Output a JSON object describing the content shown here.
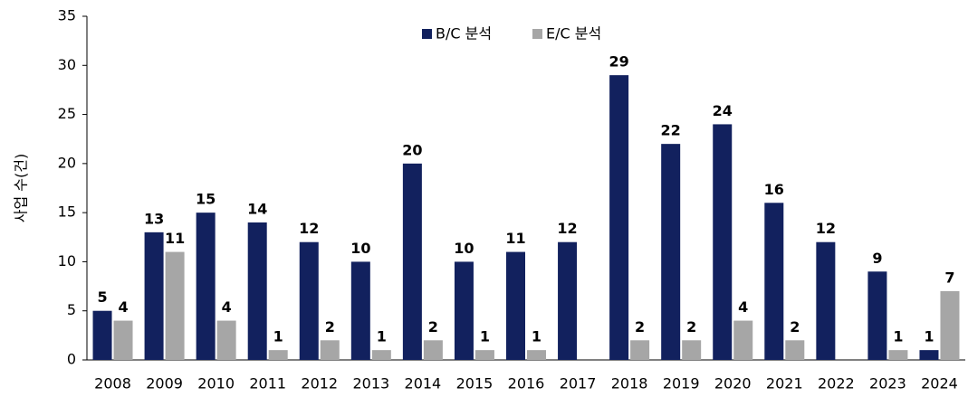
{
  "chart_data": {
    "type": "bar",
    "ylabel": "사업 수(건)",
    "categories": [
      "2008",
      "2009",
      "2010",
      "2011",
      "2012",
      "2013",
      "2014",
      "2015",
      "2016",
      "2017",
      "2018",
      "2019",
      "2020",
      "2021",
      "2022",
      "2023",
      "2024"
    ],
    "series": [
      {
        "name": "B/C 분석",
        "color": "#12215e",
        "values": [
          5,
          13,
          15,
          14,
          12,
          10,
          20,
          10,
          11,
          12,
          29,
          22,
          24,
          16,
          12,
          9,
          1
        ]
      },
      {
        "name": "E/C 분석",
        "color": "#a6a6a6",
        "values": [
          4,
          11,
          4,
          1,
          2,
          1,
          2,
          1,
          1,
          null,
          2,
          2,
          4,
          2,
          null,
          1,
          7
        ]
      }
    ],
    "ylim": [
      0,
      35
    ],
    "yticks": [
      0,
      5,
      10,
      15,
      20,
      25,
      30,
      35
    ],
    "grid": false,
    "legend": "top"
  }
}
